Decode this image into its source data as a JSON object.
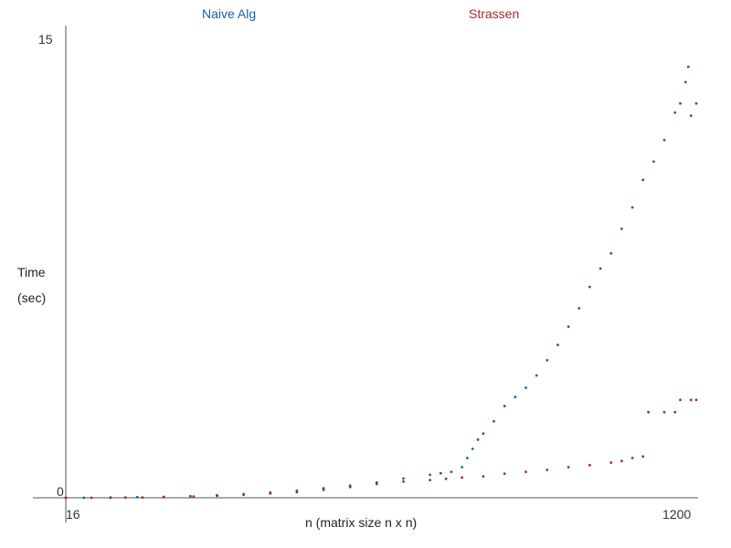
{
  "chart_data": {
    "type": "scatter",
    "title": "",
    "xlabel": "n (matrix size n x n)",
    "ylabel": [
      "Time",
      "(sec)"
    ],
    "xlim": [
      16,
      1200
    ],
    "ylim": [
      0,
      15
    ],
    "x_tick_labels": [
      "16",
      "1200"
    ],
    "y_tick_labels": [
      "0",
      "15"
    ],
    "grid": false,
    "legend_placement": "top",
    "series": [
      {
        "name": "Naive Alg",
        "color": "#1f5fa0",
        "points": [
          [
            16,
            0.0
          ],
          [
            50,
            0.0
          ],
          [
            100,
            0.01
          ],
          [
            150,
            0.02
          ],
          [
            200,
            0.03
          ],
          [
            250,
            0.05
          ],
          [
            300,
            0.08
          ],
          [
            350,
            0.12
          ],
          [
            400,
            0.17
          ],
          [
            450,
            0.23
          ],
          [
            500,
            0.31
          ],
          [
            550,
            0.4
          ],
          [
            600,
            0.5
          ],
          [
            650,
            0.63
          ],
          [
            700,
            0.75
          ],
          [
            720,
            0.8
          ],
          [
            740,
            0.85
          ],
          [
            760,
            1.0
          ],
          [
            770,
            1.3
          ],
          [
            780,
            1.6
          ],
          [
            790,
            1.9
          ],
          [
            800,
            2.1
          ],
          [
            820,
            2.5
          ],
          [
            840,
            3.0
          ],
          [
            860,
            3.3
          ],
          [
            880,
            3.6
          ],
          [
            900,
            4.0
          ],
          [
            920,
            4.5
          ],
          [
            940,
            5.0
          ],
          [
            960,
            5.6
          ],
          [
            980,
            6.2
          ],
          [
            1000,
            6.9
          ],
          [
            1020,
            7.5
          ],
          [
            1040,
            8.0
          ],
          [
            1060,
            8.8
          ],
          [
            1080,
            9.5
          ],
          [
            1100,
            10.4
          ],
          [
            1120,
            11.0
          ],
          [
            1140,
            11.7
          ],
          [
            1160,
            12.6
          ],
          [
            1170,
            12.9
          ],
          [
            1180,
            13.6
          ],
          [
            1190,
            12.5
          ],
          [
            1200,
            12.9
          ],
          [
            1185,
            14.1
          ]
        ]
      },
      {
        "name": "Strassen",
        "color": "#a52a2a",
        "points": [
          [
            16,
            0.0
          ],
          [
            64,
            0.0
          ],
          [
            100,
            0.0
          ],
          [
            128,
            0.01
          ],
          [
            160,
            0.01
          ],
          [
            200,
            0.02
          ],
          [
            256,
            0.04
          ],
          [
            300,
            0.07
          ],
          [
            350,
            0.1
          ],
          [
            400,
            0.14
          ],
          [
            450,
            0.18
          ],
          [
            500,
            0.26
          ],
          [
            550,
            0.35
          ],
          [
            600,
            0.45
          ],
          [
            650,
            0.53
          ],
          [
            700,
            0.58
          ],
          [
            730,
            0.62
          ],
          [
            760,
            0.66
          ],
          [
            800,
            0.7
          ],
          [
            840,
            0.79
          ],
          [
            880,
            0.85
          ],
          [
            920,
            0.91
          ],
          [
            960,
            1.0
          ],
          [
            1000,
            1.07
          ],
          [
            1040,
            1.15
          ],
          [
            1060,
            1.2
          ],
          [
            1080,
            1.3
          ],
          [
            1100,
            1.35
          ],
          [
            1110,
            2.8
          ],
          [
            1140,
            2.8
          ],
          [
            1160,
            2.8
          ],
          [
            1170,
            3.2
          ],
          [
            1190,
            3.2
          ],
          [
            1200,
            3.2
          ]
        ]
      }
    ]
  }
}
